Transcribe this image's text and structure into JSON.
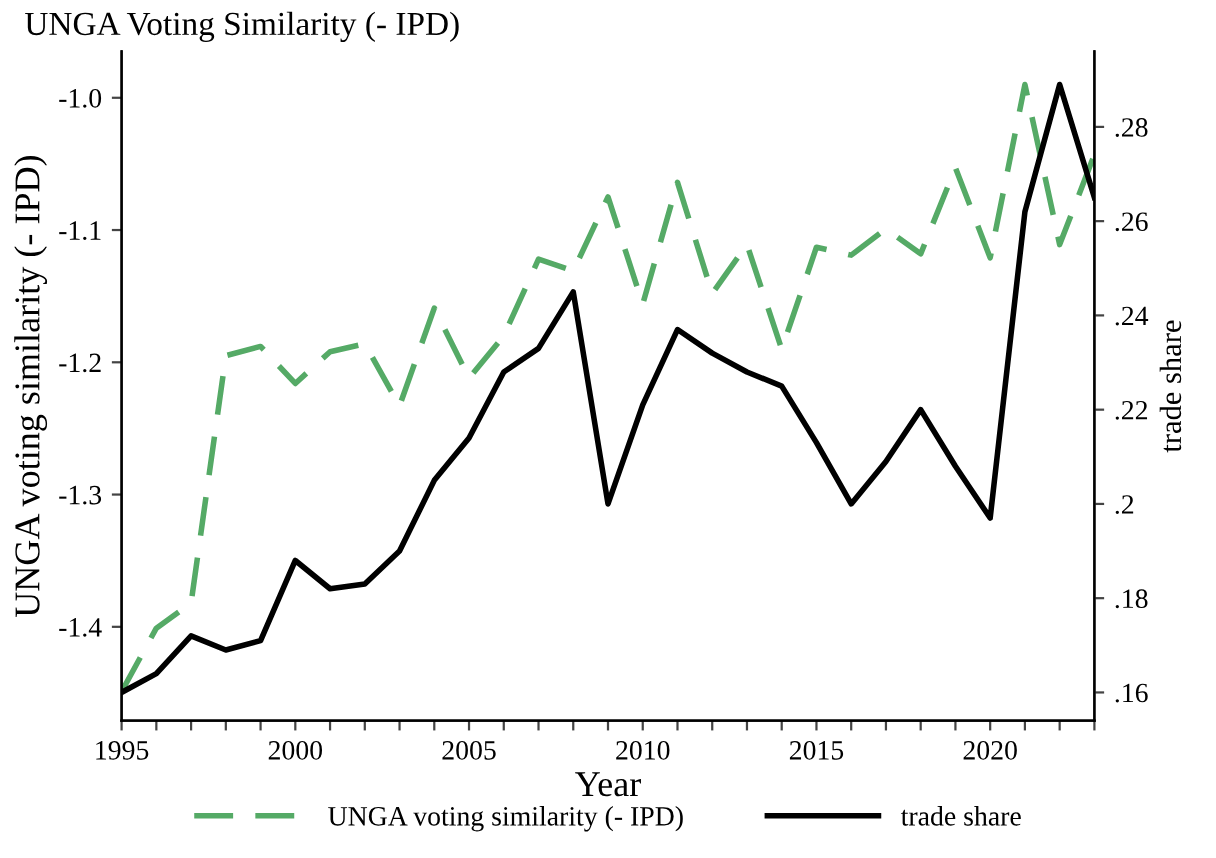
{
  "chart_data": {
    "type": "line",
    "title": "UNGA Voting Similarity (- IPD)",
    "xlabel": "Year",
    "ylabel": "UNGA voting similarity (- IPD)",
    "y2label": "trade share",
    "x": [
      1995,
      1996,
      1997,
      1998,
      1999,
      2000,
      2001,
      2002,
      2003,
      2004,
      2005,
      2006,
      2007,
      2008,
      2009,
      2010,
      2011,
      2012,
      2013,
      2014,
      2015,
      2016,
      2017,
      2018,
      2019,
      2020,
      2021,
      2022,
      2023
    ],
    "series": [
      {
        "name": "UNGA voting similarity (- IPD)",
        "color": "#55aa66",
        "line_style": "dashed",
        "values": [
          -1.449,
          -1.401,
          -1.382,
          -1.195,
          -1.188,
          -1.216,
          -1.192,
          -1.186,
          -1.233,
          -1.159,
          -1.212,
          -1.18,
          -1.122,
          -1.131,
          -1.075,
          -1.156,
          -1.064,
          -1.148,
          -1.111,
          -1.19,
          -1.113,
          -1.119,
          -1.099,
          -1.118,
          -1.053,
          -1.121,
          -0.99,
          -1.111,
          -1.043
        ]
      },
      {
        "name": "trade share",
        "color": "#000000",
        "line_style": "solid",
        "axis": "y2",
        "values": [
          0.16,
          0.164,
          0.172,
          0.169,
          0.171,
          0.188,
          0.182,
          0.183,
          0.19,
          0.205,
          0.214,
          0.228,
          0.233,
          0.245,
          0.2,
          0.221,
          0.237,
          0.232,
          0.228,
          0.225,
          0.213,
          0.2,
          0.209,
          0.22,
          0.208,
          0.197,
          0.262,
          0.289,
          0.265
        ]
      }
    ],
    "xlim": [
      1995,
      2023
    ],
    "xticks": [
      1995,
      {
        "value": 1996,
        "label": null
      },
      {
        "value": 1997,
        "label": null
      },
      {
        "value": 1998,
        "label": null
      },
      {
        "value": 1999,
        "label": null
      },
      2000,
      {
        "value": 2001,
        "label": null
      },
      {
        "value": 2002,
        "label": null
      },
      {
        "value": 2003,
        "label": null
      },
      {
        "value": 2004,
        "label": null
      },
      2005,
      {
        "value": 2006,
        "label": null
      },
      {
        "value": 2007,
        "label": null
      },
      {
        "value": 2008,
        "label": null
      },
      {
        "value": 2009,
        "label": null
      },
      2010,
      {
        "value": 2011,
        "label": null
      },
      {
        "value": 2012,
        "label": null
      },
      {
        "value": 2013,
        "label": null
      },
      {
        "value": 2014,
        "label": null
      },
      2015,
      {
        "value": 2016,
        "label": null
      },
      {
        "value": 2017,
        "label": null
      },
      {
        "value": 2018,
        "label": null
      },
      {
        "value": 2019,
        "label": null
      },
      2020,
      {
        "value": 2021,
        "label": null
      },
      {
        "value": 2022,
        "label": null
      },
      {
        "value": 2023,
        "label": null
      }
    ],
    "ylim": [
      -1.471,
      -0.965
    ],
    "yticks": [
      {
        "value": -1.4,
        "label": "-1.4"
      },
      {
        "value": -1.3,
        "label": "-1.3"
      },
      {
        "value": -1.2,
        "label": "-1.2"
      },
      {
        "value": -1.1,
        "label": "-1.1"
      },
      {
        "value": -1.0,
        "label": "-1.0"
      }
    ],
    "y2lim": [
      0.154,
      0.296
    ],
    "y2ticks": [
      {
        "value": 0.16,
        "label": ".16"
      },
      {
        "value": 0.18,
        "label": ".18"
      },
      {
        "value": 0.2,
        "label": ".2"
      },
      {
        "value": 0.22,
        "label": ".22"
      },
      {
        "value": 0.24,
        "label": ".24"
      },
      {
        "value": 0.26,
        "label": ".26"
      },
      {
        "value": 0.28,
        "label": ".28"
      }
    ],
    "grid": false,
    "legend": "bottom",
    "marker": "none"
  }
}
